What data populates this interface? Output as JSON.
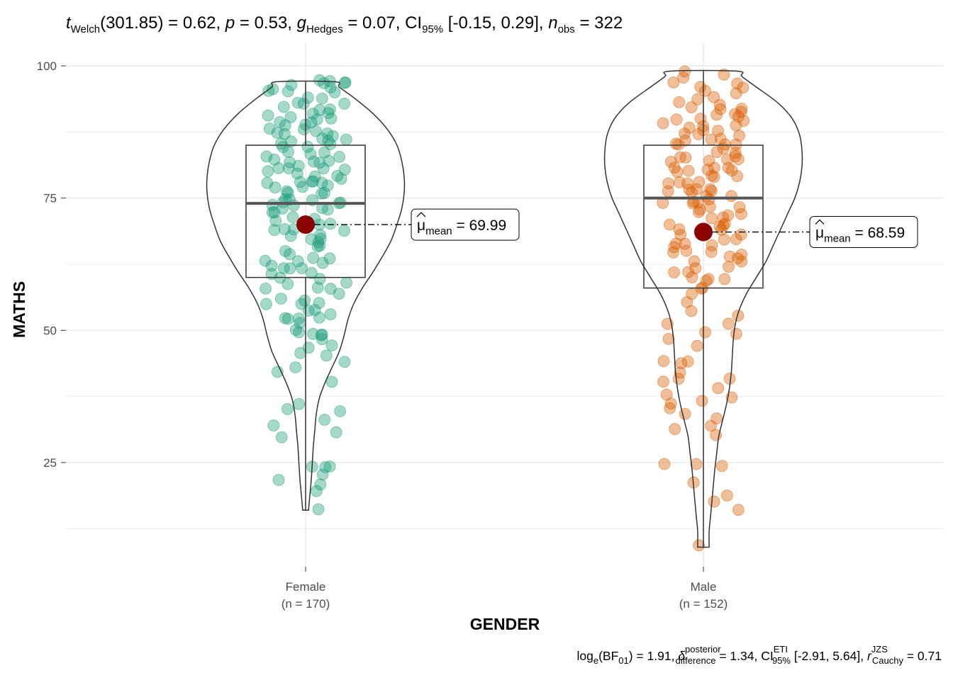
{
  "subtitle": {
    "t_symbol": "t",
    "t_sub": "Welch",
    "t_value": "(301.85) = 0.62, ",
    "p_symbol": "p",
    "p_value": " = 0.53, ",
    "g_symbol": "g",
    "g_sub": "Hedges",
    "g_value": " = 0.07, CI",
    "ci_sub": "95%",
    "ci_value": " [-0.15, 0.29], ",
    "n_symbol": "n",
    "n_sub": "obs",
    "n_value": " = 322"
  },
  "caption": {
    "log_prefix": "log",
    "log_sub": "e",
    "bf_open": "(BF",
    "bf_sub": "01",
    "bf_value": ") = 1.91, ",
    "delta_symbol": "δ",
    "delta_sup": "posterior",
    "delta_sub": "difference",
    "delta_value": " = 1.34, CI",
    "ci_sup": "ETI",
    "ci_sub": "95%",
    "ci_value": " [-2.91, 5.64], ",
    "r_symbol": "r",
    "r_sup": "JZS",
    "r_sub": "Cauchy",
    "r_value": " = 0.71"
  },
  "mean_labels": [
    {
      "symbol": "μ",
      "sub": "mean",
      "value": " = 69.99"
    },
    {
      "symbol": "μ",
      "sub": "mean",
      "value": " = 68.59"
    }
  ],
  "colors": {
    "female": "#1b9e77",
    "male": "#d95f02",
    "mean_point": "#8b0000",
    "grid": "#ebebeb",
    "outline": "#333333"
  },
  "chart_data": {
    "type": "violin-box-scatter",
    "xlabel": "GENDER",
    "ylabel": "MATHS",
    "ylim": [
      5,
      102.5
    ],
    "yticks": [
      25,
      50,
      75,
      100
    ],
    "categories": [
      "Female",
      "Male"
    ],
    "category_counts": [
      "(n = 170)",
      "(n = 152)"
    ],
    "groups": [
      {
        "name": "Female",
        "n": 170,
        "mean": 69.99,
        "box": {
          "q1": 60,
          "median": 74,
          "q3": 85,
          "whisker_low": 16,
          "whisker_high": 97
        },
        "range": [
          16,
          97
        ],
        "violin": [
          [
            16,
            0.006
          ],
          [
            18,
            0.008
          ],
          [
            20,
            0.01
          ],
          [
            22,
            0.012
          ],
          [
            25,
            0.014
          ],
          [
            28,
            0.016
          ],
          [
            31,
            0.019
          ],
          [
            34,
            0.022
          ],
          [
            37,
            0.028
          ],
          [
            40,
            0.04
          ],
          [
            43,
            0.055
          ],
          [
            46,
            0.07
          ],
          [
            49,
            0.08
          ],
          [
            52,
            0.088
          ],
          [
            55,
            0.1
          ],
          [
            58,
            0.118
          ],
          [
            61,
            0.14
          ],
          [
            64,
            0.16
          ],
          [
            67,
            0.178
          ],
          [
            70,
            0.19
          ],
          [
            73,
            0.2
          ],
          [
            76,
            0.205
          ],
          [
            79,
            0.205
          ],
          [
            82,
            0.2
          ],
          [
            85,
            0.19
          ],
          [
            88,
            0.17
          ],
          [
            91,
            0.14
          ],
          [
            94,
            0.1
          ],
          [
            96,
            0.07
          ],
          [
            97,
            0.06
          ]
        ],
        "points": [
          16,
          20,
          21,
          22,
          23,
          24,
          24,
          24,
          30,
          31,
          32,
          33,
          35,
          35,
          36,
          40,
          42,
          43,
          44,
          45,
          46,
          47,
          47,
          48,
          49,
          49,
          49,
          50,
          50,
          51,
          52,
          52,
          52,
          52,
          53,
          54,
          54,
          55,
          55,
          55,
          56,
          56,
          57,
          58,
          58,
          58,
          59,
          59,
          60,
          60,
          61,
          61,
          62,
          62,
          62,
          62,
          63,
          63,
          63,
          64,
          64,
          64,
          65,
          66,
          66,
          67,
          67,
          67,
          68,
          68,
          69,
          69,
          69,
          69,
          70,
          70,
          70,
          71,
          71,
          71,
          72,
          72,
          73,
          73,
          73,
          74,
          74,
          74,
          74,
          75,
          75,
          75,
          76,
          76,
          76,
          76,
          77,
          77,
          77,
          78,
          78,
          78,
          78,
          79,
          79,
          79,
          80,
          80,
          80,
          81,
          81,
          81,
          81,
          82,
          82,
          82,
          82,
          83,
          83,
          83,
          84,
          84,
          85,
          85,
          85,
          85,
          86,
          86,
          86,
          87,
          87,
          87,
          87,
          88,
          88,
          88,
          89,
          89,
          89,
          89,
          90,
          90,
          90,
          91,
          91,
          91,
          92,
          92,
          92,
          93,
          93,
          93,
          94,
          94,
          95,
          95,
          95,
          96,
          96,
          96,
          97,
          97,
          97,
          97,
          97,
          70,
          74,
          78,
          82,
          86
        ]
      },
      {
        "name": "Male",
        "n": 152,
        "mean": 68.59,
        "box": {
          "q1": 58,
          "median": 75,
          "q3": 85,
          "whisker_low": 9,
          "whisker_high": 99
        },
        "range": [
          9,
          99
        ],
        "violin": [
          [
            9,
            0.012
          ],
          [
            12,
            0.012
          ],
          [
            15,
            0.015
          ],
          [
            18,
            0.018
          ],
          [
            21,
            0.021
          ],
          [
            24,
            0.024
          ],
          [
            27,
            0.028
          ],
          [
            30,
            0.032
          ],
          [
            33,
            0.04
          ],
          [
            36,
            0.048
          ],
          [
            39,
            0.054
          ],
          [
            42,
            0.058
          ],
          [
            45,
            0.06
          ],
          [
            48,
            0.062
          ],
          [
            51,
            0.066
          ],
          [
            54,
            0.075
          ],
          [
            57,
            0.09
          ],
          [
            60,
            0.11
          ],
          [
            63,
            0.13
          ],
          [
            66,
            0.145
          ],
          [
            69,
            0.16
          ],
          [
            72,
            0.175
          ],
          [
            75,
            0.19
          ],
          [
            78,
            0.2
          ],
          [
            81,
            0.205
          ],
          [
            84,
            0.205
          ],
          [
            87,
            0.2
          ],
          [
            90,
            0.185
          ],
          [
            93,
            0.155
          ],
          [
            96,
            0.11
          ],
          [
            98,
            0.08
          ],
          [
            99,
            0.07
          ]
        ],
        "points": [
          9,
          16,
          18,
          19,
          21,
          24,
          25,
          25,
          30,
          31,
          32,
          33,
          34,
          35,
          36,
          37,
          37,
          38,
          39,
          40,
          41,
          41,
          42,
          44,
          44,
          44,
          47,
          48,
          49,
          50,
          51,
          51,
          53,
          54,
          55,
          57,
          58,
          58,
          59,
          60,
          60,
          60,
          61,
          61,
          62,
          62,
          63,
          63,
          64,
          64,
          64,
          65,
          65,
          65,
          66,
          66,
          66,
          67,
          67,
          68,
          68,
          69,
          69,
          70,
          70,
          70,
          71,
          71,
          72,
          72,
          72,
          73,
          73,
          73,
          74,
          74,
          74,
          75,
          75,
          75,
          76,
          76,
          76,
          77,
          77,
          77,
          78,
          78,
          78,
          79,
          79,
          79,
          80,
          80,
          80,
          80,
          81,
          81,
          81,
          82,
          82,
          82,
          83,
          83,
          83,
          84,
          84,
          84,
          85,
          85,
          85,
          85,
          86,
          86,
          86,
          87,
          87,
          87,
          88,
          88,
          88,
          89,
          89,
          89,
          90,
          90,
          90,
          90,
          91,
          91,
          91,
          92,
          92,
          92,
          93,
          93,
          94,
          94,
          95,
          95,
          96,
          96,
          97,
          97,
          98,
          98,
          99,
          66,
          70,
          74,
          78,
          82
        ]
      }
    ],
    "grid": true,
    "legend": "none"
  }
}
